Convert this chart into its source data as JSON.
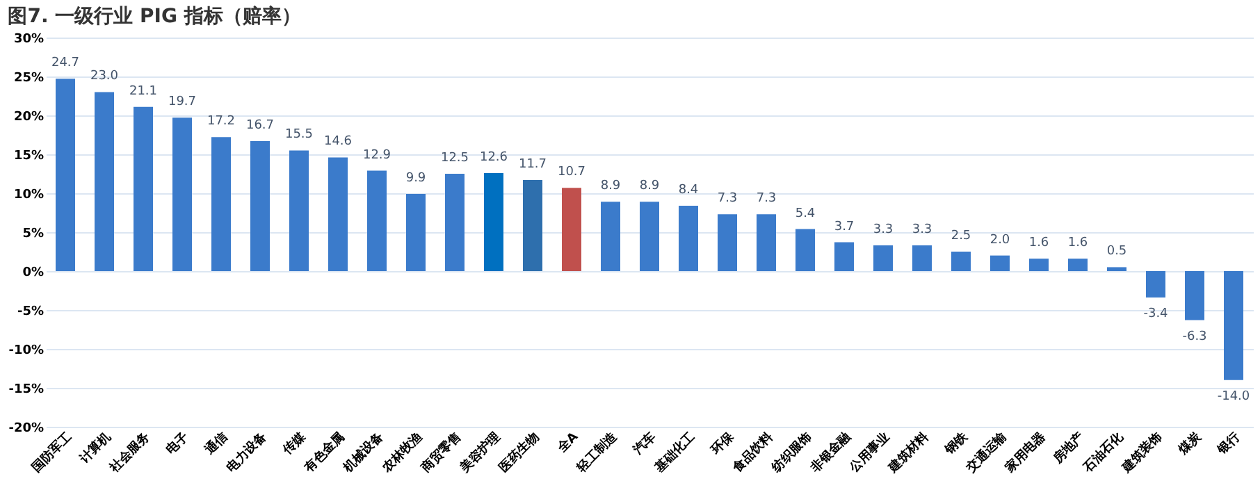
{
  "chart_data": {
    "type": "bar",
    "title": "图7. 一级行业 PIG 指标（赔率）",
    "categories": [
      "国防军工",
      "计算机",
      "社会服务",
      "电子",
      "通信",
      "电力设备",
      "传媒",
      "有色金属",
      "机械设备",
      "农林牧渔",
      "商贸零售",
      "美容护理",
      "医药生物",
      "全A",
      "轻工制造",
      "汽车",
      "基础化工",
      "环保",
      "食品饮料",
      "纺织服饰",
      "非银金融",
      "公用事业",
      "建筑材料",
      "钢铁",
      "交通运输",
      "家用电器",
      "房地产",
      "石油石化",
      "建筑装饰",
      "煤炭",
      "银行"
    ],
    "values": [
      24.7,
      23.0,
      21.1,
      19.7,
      17.2,
      16.7,
      15.5,
      14.6,
      12.9,
      9.9,
      12.5,
      12.6,
      11.7,
      10.7,
      8.9,
      8.9,
      8.4,
      7.3,
      7.3,
      5.4,
      3.7,
      3.3,
      3.3,
      2.5,
      2.0,
      1.6,
      1.6,
      0.5,
      -3.4,
      -6.3,
      -14.0
    ],
    "colors": [
      "#3b7bcb",
      "#3b7bcb",
      "#3b7bcb",
      "#3b7bcb",
      "#3b7bcb",
      "#3b7bcb",
      "#3b7bcb",
      "#3b7bcb",
      "#3b7bcb",
      "#3b7bcb",
      "#3b7bcb",
      "#0070c0",
      "#2e6fad",
      "#c0504d",
      "#3b7bcb",
      "#3b7bcb",
      "#3b7bcb",
      "#3b7bcb",
      "#3b7bcb",
      "#3b7bcb",
      "#3b7bcb",
      "#3b7bcb",
      "#3b7bcb",
      "#3b7bcb",
      "#3b7bcb",
      "#3b7bcb",
      "#3b7bcb",
      "#3b7bcb",
      "#3b7bcb",
      "#3b7bcb",
      "#3b7bcb"
    ],
    "ylim": [
      -20,
      30
    ],
    "yticks": [
      {
        "value": -20,
        "label": "-20%"
      },
      {
        "value": -15,
        "label": "-15%"
      },
      {
        "value": -10,
        "label": "-10%"
      },
      {
        "value": -5,
        "label": "-5%"
      },
      {
        "value": 0,
        "label": "0%"
      },
      {
        "value": 5,
        "label": "5%"
      },
      {
        "value": 10,
        "label": "10%"
      },
      {
        "value": 15,
        "label": "15%"
      },
      {
        "value": 20,
        "label": "20%"
      },
      {
        "value": 25,
        "label": "25%"
      },
      {
        "value": 30,
        "label": "30%"
      }
    ],
    "value_labels": [
      "24.7",
      "23.0",
      "21.1",
      "19.7",
      "17.2",
      "16.7",
      "15.5",
      "14.6",
      "12.9",
      "9.9",
      "12.5",
      "12.6",
      "11.7",
      "10.7",
      "8.9",
      "8.9",
      "8.4",
      "7.3",
      "7.3",
      "5.4",
      "3.7",
      "3.3",
      "3.3",
      "2.5",
      "2.0",
      "1.6",
      "1.6",
      "0.5",
      "-3.4",
      "-6.3",
      "-14.0"
    ],
    "grid": "y"
  }
}
